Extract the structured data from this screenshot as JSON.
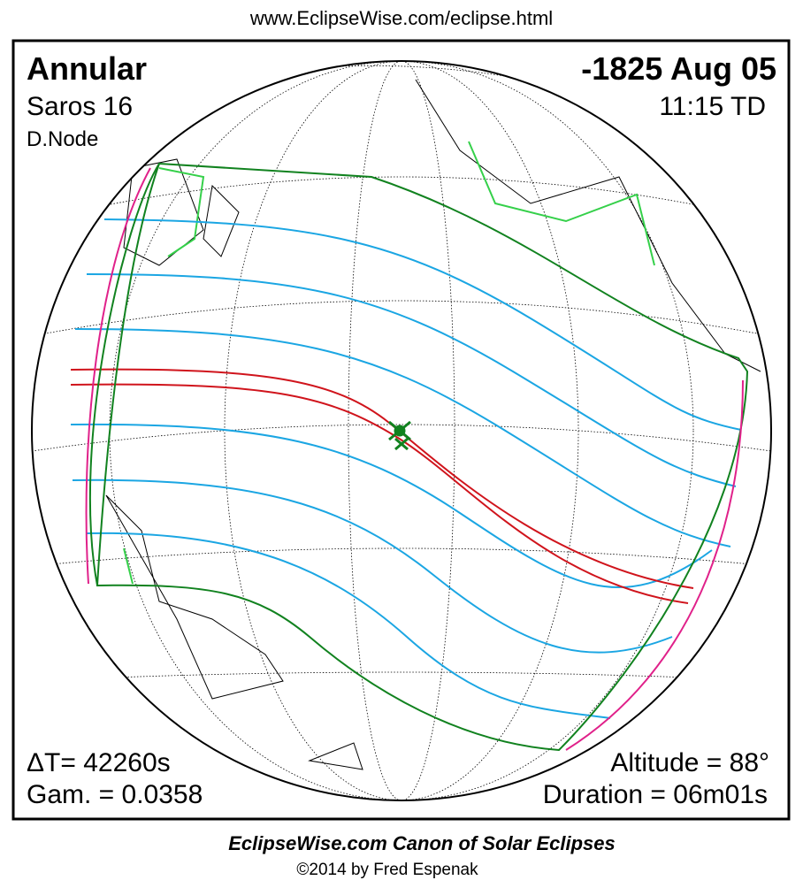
{
  "header": {
    "url": "www.EclipseWise.com/eclipse.html"
  },
  "eclipse": {
    "type": "Annular",
    "saros": "Saros  16",
    "node": "D.Node",
    "date": "-1825 Aug 05",
    "time": "11:15 TD",
    "delta_t": "ΔT=  42260s",
    "gamma": "Gam. = 0.0358",
    "altitude": "Altitude = 88°",
    "duration": "Duration = 06m01s"
  },
  "footer": {
    "title": "EclipseWise.com Canon of Solar Eclipses",
    "copyright": "©2014 by Fred Espenak"
  }
}
